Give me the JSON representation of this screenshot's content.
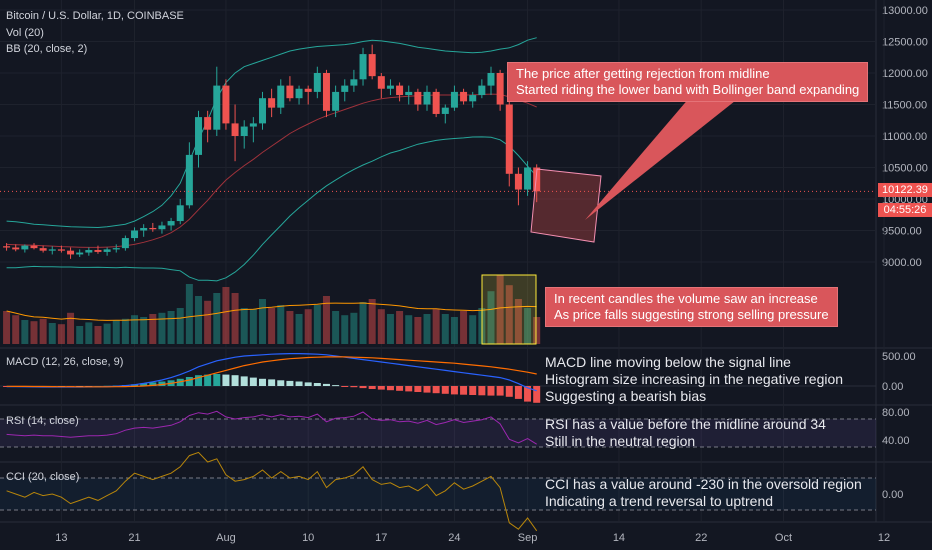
{
  "header": {
    "symbol_title": "Bitcoin / U.S. Dollar, 1D, COINBASE",
    "volume_label": "Vol (20)",
    "bb_label": "BB (20, close, 2)",
    "macd_label": "MACD (12, 26, close, 9)",
    "rsi_label": "RSI (14, close)",
    "cci_label": "CCI (20, close)"
  },
  "price_tags": {
    "last_price": "10122.39",
    "countdown": "04:55:26"
  },
  "annotations": {
    "bb_note": [
      "The price after getting rejection from midline",
      "Started riding the lower band with Bollinger band expanding"
    ],
    "volume_note": [
      "In recent candles the volume saw an increase",
      "As price falls suggesting strong selling pressure"
    ],
    "macd_note": [
      "MACD line moving below the signal line",
      "Histogram size increasing in the negative region",
      "Suggesting a bearish bias"
    ],
    "rsi_note": [
      "RSI has a value before the midline around 34",
      "Still in the neutral region"
    ],
    "cci_note": [
      "CCI has a value around -230 in the oversold region",
      "Indicating a trend reversal to uptrend"
    ]
  },
  "colors": {
    "background": "#131722",
    "up": "#26a69a",
    "down": "#ef5350",
    "bb_band": "#26a69a",
    "bb_mid": "#ef5350",
    "macd_line": "#2962ff",
    "signal_line": "#ff6d00",
    "rsi_line": "#9c27b0",
    "cci_line": "#b8860b",
    "annotation_box": "#d9565b"
  },
  "chart_data": [
    {
      "type": "candlestick",
      "title": "Bitcoin / U.S. Dollar, 1D, COINBASE",
      "ylim": [
        8750,
        13200
      ],
      "y_ticks": [
        9000,
        9500,
        10000,
        10500,
        11000,
        11500,
        12000,
        12500,
        13000
      ],
      "x_tick_labels": [
        "13",
        "21",
        "Aug",
        "10",
        "17",
        "24",
        "Sep",
        "14",
        "22",
        "Oct",
        "12"
      ],
      "x_tick_positions": [
        6,
        14,
        24,
        33,
        41,
        49,
        57,
        67,
        76,
        85,
        96
      ],
      "ohlc_approx": [
        [
          9250,
          9300,
          9180,
          9230
        ],
        [
          9230,
          9280,
          9170,
          9200
        ],
        [
          9200,
          9280,
          9150,
          9260
        ],
        [
          9260,
          9300,
          9200,
          9220
        ],
        [
          9220,
          9260,
          9150,
          9180
        ],
        [
          9180,
          9250,
          9120,
          9200
        ],
        [
          9200,
          9260,
          9150,
          9180
        ],
        [
          9180,
          9230,
          9050,
          9120
        ],
        [
          9120,
          9200,
          9080,
          9150
        ],
        [
          9150,
          9230,
          9100,
          9190
        ],
        [
          9190,
          9260,
          9130,
          9160
        ],
        [
          9160,
          9230,
          9100,
          9200
        ],
        [
          9200,
          9280,
          9150,
          9220
        ],
        [
          9220,
          9420,
          9180,
          9380
        ],
        [
          9380,
          9550,
          9330,
          9500
        ],
        [
          9500,
          9600,
          9400,
          9540
        ],
        [
          9540,
          9620,
          9480,
          9520
        ],
        [
          9520,
          9640,
          9450,
          9580
        ],
        [
          9580,
          9700,
          9500,
          9650
        ],
        [
          9650,
          10000,
          9600,
          9900
        ],
        [
          9900,
          10900,
          9850,
          10700
        ],
        [
          10700,
          11400,
          10500,
          11300
        ],
        [
          11300,
          11400,
          10900,
          11100
        ],
        [
          11100,
          12100,
          11000,
          11800
        ],
        [
          11800,
          11900,
          11100,
          11200
        ],
        [
          11200,
          11500,
          10600,
          11000
        ],
        [
          11000,
          11250,
          10800,
          11150
        ],
        [
          11150,
          11300,
          10900,
          11200
        ],
        [
          11200,
          11700,
          11100,
          11600
        ],
        [
          11600,
          11750,
          11300,
          11450
        ],
        [
          11450,
          11900,
          11350,
          11800
        ],
        [
          11800,
          11950,
          11550,
          11600
        ],
        [
          11600,
          11800,
          11500,
          11750
        ],
        [
          11750,
          11800,
          11500,
          11700
        ],
        [
          11700,
          12100,
          11600,
          12000
        ],
        [
          12000,
          12050,
          11300,
          11400
        ],
        [
          11400,
          11800,
          11300,
          11700
        ],
        [
          11700,
          11900,
          11550,
          11800
        ],
        [
          11800,
          12050,
          11700,
          11900
        ],
        [
          11900,
          12400,
          11800,
          12300
        ],
        [
          12300,
          12450,
          11900,
          11950
        ],
        [
          11950,
          12000,
          11600,
          11750
        ],
        [
          11750,
          11900,
          11650,
          11800
        ],
        [
          11800,
          11850,
          11550,
          11650
        ],
        [
          11650,
          11800,
          11500,
          11700
        ],
        [
          11700,
          11750,
          11400,
          11500
        ],
        [
          11500,
          11800,
          11400,
          11700
        ],
        [
          11700,
          11750,
          11300,
          11350
        ],
        [
          11350,
          11500,
          11200,
          11450
        ],
        [
          11450,
          11800,
          11400,
          11700
        ],
        [
          11700,
          11750,
          11500,
          11550
        ],
        [
          11550,
          11700,
          11450,
          11650
        ],
        [
          11650,
          11900,
          11600,
          11800
        ],
        [
          11800,
          12100,
          11650,
          12000
        ],
        [
          12000,
          12050,
          11400,
          11500
        ],
        [
          11500,
          11600,
          10200,
          10400
        ],
        [
          10400,
          10500,
          9900,
          10150
        ],
        [
          10150,
          10600,
          10050,
          10500
        ],
        [
          10500,
          10550,
          9950,
          10122
        ]
      ],
      "bb_upper_approx": [
        9650,
        9640,
        9620,
        9600,
        9590,
        9580,
        9570,
        9560,
        9555,
        9550,
        9548,
        9560,
        9580,
        9600,
        9650,
        9720,
        9800,
        9900,
        10050,
        10250,
        10600,
        10950,
        11250,
        11600,
        11850,
        12000,
        12100,
        12150,
        12200,
        12250,
        12300,
        12350,
        12380,
        12400,
        12420,
        12430,
        12440,
        12450,
        12470,
        12500,
        12520,
        12510,
        12490,
        12470,
        12440,
        12410,
        12390,
        12370,
        12350,
        12340,
        12330,
        12320,
        12330,
        12350,
        12380,
        12400,
        12450,
        12520,
        12560
      ],
      "bb_middle_approx": [
        9280,
        9275,
        9270,
        9265,
        9258,
        9252,
        9245,
        9240,
        9235,
        9232,
        9232,
        9236,
        9245,
        9258,
        9280,
        9312,
        9352,
        9400,
        9465,
        9555,
        9680,
        9830,
        9980,
        10150,
        10300,
        10420,
        10530,
        10630,
        10740,
        10840,
        10940,
        11040,
        11120,
        11190,
        11260,
        11320,
        11370,
        11420,
        11470,
        11520,
        11560,
        11590,
        11610,
        11620,
        11630,
        11640,
        11645,
        11650,
        11650,
        11650,
        11650,
        11652,
        11658,
        11665,
        11660,
        11620,
        11570,
        11520,
        11460
      ],
      "bb_lower_approx": [
        8910,
        8910,
        8920,
        8930,
        8926,
        8924,
        8920,
        8920,
        8915,
        8914,
        8916,
        8912,
        8910,
        8916,
        8910,
        8904,
        8904,
        8900,
        8880,
        8860,
        8760,
        8710,
        8710,
        8700,
        8750,
        8840,
        8960,
        9110,
        9280,
        9430,
        9580,
        9730,
        9860,
        9980,
        10100,
        10210,
        10300,
        10390,
        10470,
        10540,
        10600,
        10670,
        10730,
        10770,
        10820,
        10870,
        10900,
        10930,
        10950,
        10960,
        10970,
        10984,
        10986,
        10980,
        10940,
        10840,
        10690,
        10520,
        10360
      ],
      "volume_approx": [
        55,
        48,
        40,
        38,
        42,
        35,
        33,
        52,
        30,
        36,
        30,
        34,
        40,
        42,
        48,
        45,
        50,
        52,
        55,
        60,
        100,
        80,
        72,
        85,
        95,
        85,
        60,
        58,
        75,
        60,
        65,
        55,
        50,
        58,
        65,
        80,
        55,
        48,
        52,
        70,
        75,
        58,
        50,
        55,
        48,
        45,
        50,
        58,
        50,
        45,
        55,
        48,
        60,
        88,
        115,
        98,
        75,
        60,
        45
      ]
    },
    {
      "type": "line",
      "title": "MACD (12, 26, close, 9)",
      "ylim": [
        -200,
        600
      ],
      "y_ticks": [
        0,
        500
      ],
      "series": [
        {
          "name": "MACD",
          "values": [
            -10,
            -12,
            -14,
            -15,
            -16,
            -16,
            -16,
            -17,
            -16,
            -15,
            -13,
            -10,
            -4,
            6,
            22,
            44,
            70,
            100,
            140,
            190,
            250,
            320,
            370,
            420,
            450,
            480,
            500,
            510,
            520,
            530,
            535,
            540,
            540,
            535,
            530,
            520,
            500,
            480,
            460,
            440,
            420,
            400,
            380,
            360,
            340,
            320,
            300,
            280,
            260,
            240,
            220,
            200,
            180,
            160,
            140,
            100,
            40,
            -30,
            -80
          ]
        },
        {
          "name": "Signal",
          "values": [
            -5,
            -6,
            -7,
            -8,
            -9,
            -10,
            -11,
            -12,
            -13,
            -13,
            -13,
            -13,
            -12,
            -10,
            -6,
            0,
            10,
            25,
            45,
            70,
            100,
            140,
            180,
            220,
            260,
            300,
            340,
            370,
            400,
            420,
            440,
            455,
            465,
            475,
            480,
            485,
            485,
            485,
            480,
            475,
            470,
            460,
            450,
            440,
            430,
            420,
            410,
            400,
            390,
            380,
            365,
            350,
            335,
            320,
            300,
            280,
            255,
            230,
            200
          ]
        }
      ],
      "histogram_approx": [
        -5,
        -6,
        -7,
        -7,
        -7,
        -6,
        -5,
        -5,
        -3,
        -2,
        0,
        3,
        8,
        16,
        28,
        44,
        60,
        75,
        95,
        120,
        150,
        180,
        190,
        200,
        190,
        180,
        160,
        140,
        120,
        110,
        95,
        85,
        75,
        60,
        50,
        35,
        15,
        -5,
        -20,
        -35,
        -50,
        -60,
        -70,
        -80,
        -90,
        -100,
        -110,
        -120,
        -130,
        -140,
        -145,
        -150,
        -155,
        -160,
        -160,
        -180,
        -215,
        -260,
        -280
      ]
    },
    {
      "type": "line",
      "title": "RSI (14, close)",
      "ylim": [
        20,
        95
      ],
      "y_ticks": [
        40,
        80
      ],
      "series": [
        {
          "name": "RSI",
          "values": [
            48,
            47,
            46,
            47,
            46,
            46,
            45,
            44,
            45,
            46,
            46,
            47,
            49,
            54,
            57,
            58,
            57,
            59,
            61,
            66,
            75,
            79,
            77,
            81,
            73,
            70,
            72,
            73,
            76,
            73,
            76,
            73,
            74,
            72,
            77,
            66,
            71,
            72,
            74,
            80,
            70,
            68,
            69,
            66,
            67,
            64,
            68,
            62,
            65,
            69,
            65,
            67,
            69,
            73,
            63,
            41,
            36,
            42,
            34
          ]
        }
      ]
    },
    {
      "type": "line",
      "title": "CCI (20, close)",
      "ylim": [
        -300,
        300
      ],
      "y_ticks": [
        0
      ],
      "series": [
        {
          "name": "CCI",
          "values": [
            20,
            0,
            -20,
            10,
            -10,
            0,
            -20,
            -60,
            -40,
            -20,
            -40,
            -10,
            20,
            80,
            130,
            110,
            90,
            110,
            130,
            170,
            240,
            260,
            200,
            220,
            120,
            80,
            90,
            110,
            150,
            100,
            140,
            100,
            110,
            90,
            140,
            40,
            90,
            100,
            120,
            170,
            90,
            60,
            70,
            40,
            50,
            20,
            60,
            -10,
            20,
            70,
            30,
            50,
            80,
            110,
            40,
            -180,
            -220,
            -150,
            -230
          ]
        }
      ]
    }
  ]
}
